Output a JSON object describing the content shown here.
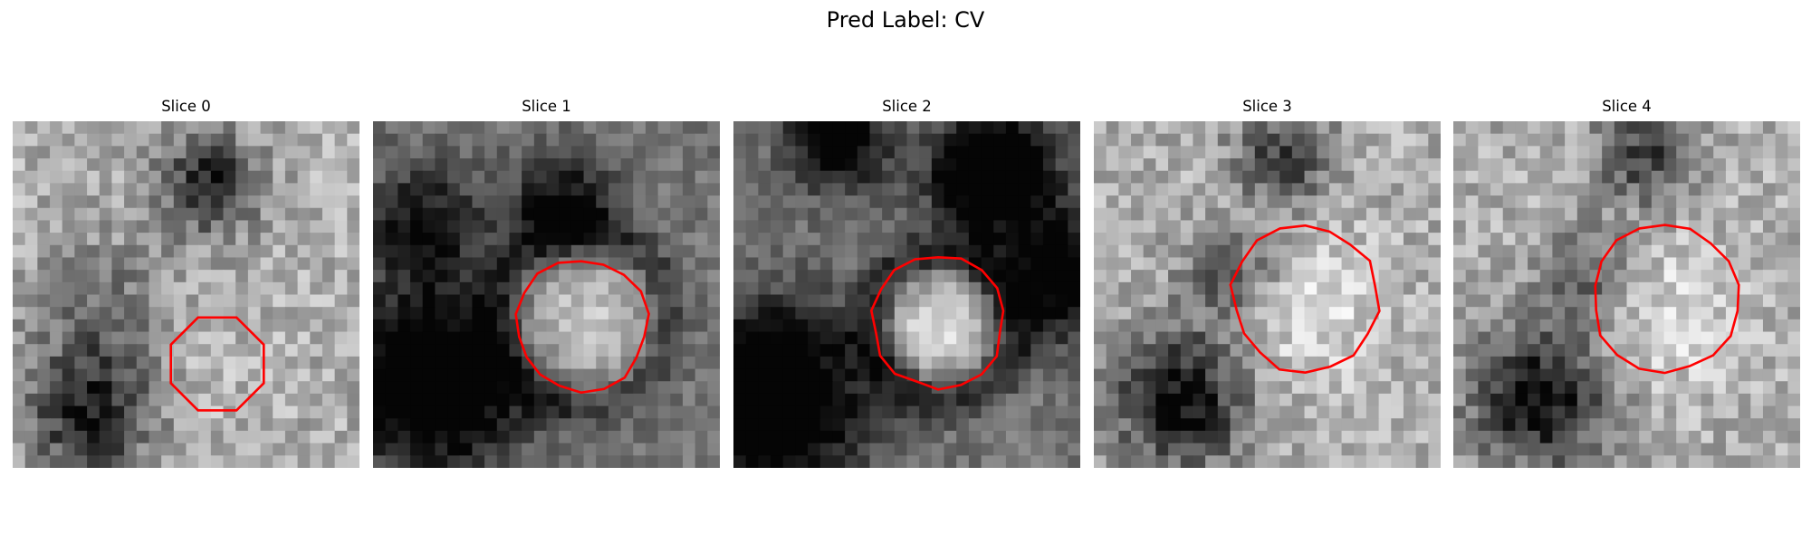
{
  "title": "Pred Label: CV",
  "contour_color": "#ff0000",
  "colormap": "gray",
  "grid_size": 28,
  "slices": [
    {
      "label": "Slice 0",
      "style": "noisy",
      "blob_brightness": 0.55,
      "dark_regions": [
        "upper-center",
        "lower-left"
      ]
    },
    {
      "label": "Slice 1",
      "style": "dark-ring",
      "blob_brightness": 0.85,
      "dark_regions": [
        "ring-around-blob",
        "lower-left"
      ]
    },
    {
      "label": "Slice 2",
      "style": "dark-ring",
      "blob_brightness": 0.95,
      "dark_regions": [
        "ring-around-blob",
        "upper-right",
        "lower-left"
      ]
    },
    {
      "label": "Slice 3",
      "style": "noisy",
      "blob_brightness": 0.7,
      "dark_regions": [
        "lower-left",
        "upper-center"
      ]
    },
    {
      "label": "Slice 4",
      "style": "noisy",
      "blob_brightness": 0.7,
      "dark_regions": [
        "lower-left",
        "upper-center"
      ]
    }
  ]
}
